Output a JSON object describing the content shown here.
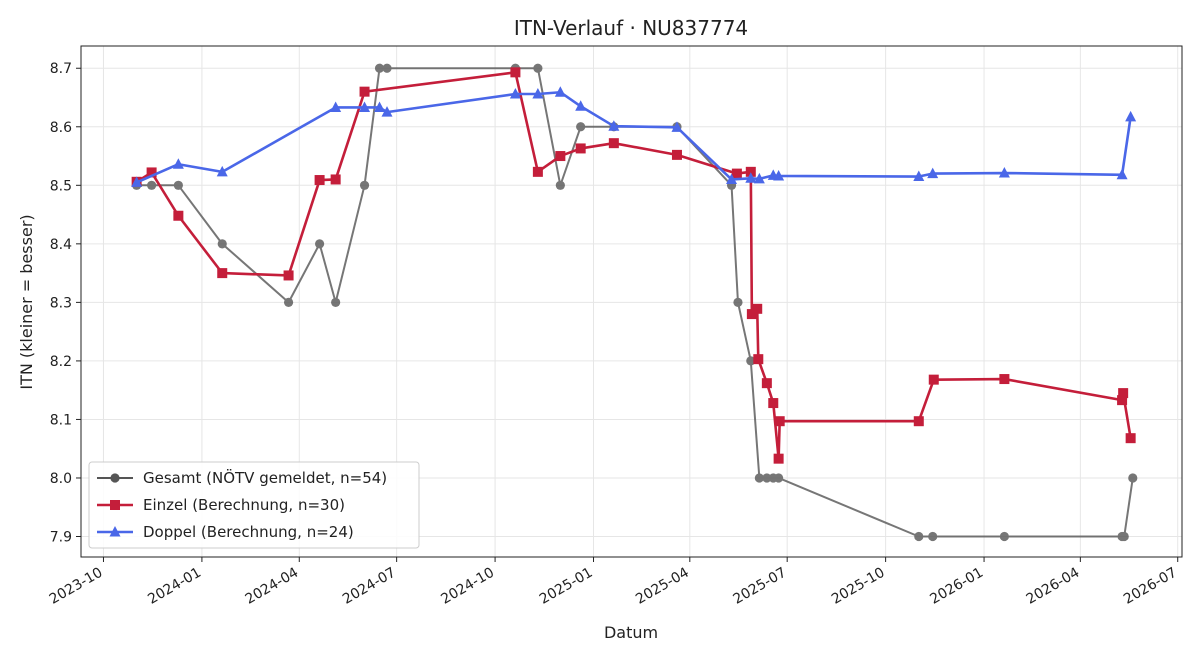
{
  "chart_data": {
    "type": "line",
    "title": "ITN-Verlauf · NU837774",
    "xlabel": "Datum",
    "ylabel": "ITN  (kleiner = besser)",
    "x_ticks": [
      "2023-10",
      "2024-01",
      "2024-04",
      "2024-07",
      "2024-10",
      "2025-01",
      "2025-04",
      "2025-07",
      "2025-10",
      "2026-01",
      "2026-04",
      "2026-07"
    ],
    "y_ticks": [
      "7.9",
      "8.0",
      "8.1",
      "8.2",
      "8.3",
      "8.4",
      "8.5",
      "8.6",
      "8.7"
    ],
    "xlim": [
      "2023-09-10",
      "2026-07-05"
    ],
    "ylim": [
      7.865,
      8.738
    ],
    "grid": true,
    "legend_position": "lower-left",
    "series": [
      {
        "name": "Gesamt (NÖTV gemeldet, n=54)",
        "color": "#555555",
        "marker": "circle",
        "points": [
          [
            "2023-11-01",
            8.5
          ],
          [
            "2023-11-15",
            8.5
          ],
          [
            "2023-12-10",
            8.5
          ],
          [
            "2024-01-20",
            8.4
          ],
          [
            "2024-03-22",
            8.3
          ],
          [
            "2024-04-20",
            8.4
          ],
          [
            "2024-05-05",
            8.3
          ],
          [
            "2024-06-01",
            8.5
          ],
          [
            "2024-06-15",
            8.7
          ],
          [
            "2024-06-22",
            8.7
          ],
          [
            "2024-10-20",
            8.7
          ],
          [
            "2024-11-10",
            8.7
          ],
          [
            "2024-12-01",
            8.5
          ],
          [
            "2024-12-20",
            8.6
          ],
          [
            "2025-01-20",
            8.6
          ],
          [
            "2025-03-20",
            8.6
          ],
          [
            "2025-05-10",
            8.5
          ],
          [
            "2025-05-16",
            8.3
          ],
          [
            "2025-05-28",
            8.2
          ],
          [
            "2025-06-05",
            8.0
          ],
          [
            "2025-06-12",
            8.0
          ],
          [
            "2025-06-18",
            8.0
          ],
          [
            "2025-06-23",
            8.0
          ],
          [
            "2025-11-01",
            7.9
          ],
          [
            "2025-11-14",
            7.9
          ],
          [
            "2026-01-20",
            7.9
          ],
          [
            "2026-05-10",
            7.9
          ],
          [
            "2026-05-12",
            7.9
          ],
          [
            "2026-05-20",
            8.0
          ]
        ]
      },
      {
        "name": "Einzel (Berechnung, n=30)",
        "color": "#c41e3a",
        "marker": "square",
        "points": [
          [
            "2023-11-01",
            8.506
          ],
          [
            "2023-11-15",
            8.522
          ],
          [
            "2023-12-10",
            8.448
          ],
          [
            "2024-01-20",
            8.35
          ],
          [
            "2024-03-22",
            8.346
          ],
          [
            "2024-04-20",
            8.509
          ],
          [
            "2024-05-05",
            8.51
          ],
          [
            "2024-06-01",
            8.66
          ],
          [
            "2024-10-20",
            8.693
          ],
          [
            "2024-11-10",
            8.523
          ],
          [
            "2024-12-01",
            8.55
          ],
          [
            "2024-12-20",
            8.563
          ],
          [
            "2025-01-20",
            8.572
          ],
          [
            "2025-03-20",
            8.552
          ],
          [
            "2025-05-15",
            8.52
          ],
          [
            "2025-05-28",
            8.523
          ],
          [
            "2025-05-29",
            8.28
          ],
          [
            "2025-06-03",
            8.289
          ],
          [
            "2025-06-04",
            8.203
          ],
          [
            "2025-06-12",
            8.162
          ],
          [
            "2025-06-18",
            8.128
          ],
          [
            "2025-06-23",
            8.033
          ],
          [
            "2025-06-24",
            8.097
          ],
          [
            "2025-11-01",
            8.097
          ],
          [
            "2025-11-15",
            8.168
          ],
          [
            "2026-01-20",
            8.169
          ],
          [
            "2026-05-10",
            8.133
          ],
          [
            "2026-05-11",
            8.145
          ],
          [
            "2026-05-18",
            8.068
          ]
        ]
      },
      {
        "name": "Doppel (Berechnung, n=24)",
        "color": "#4a67e8",
        "marker": "triangle",
        "points": [
          [
            "2023-11-01",
            8.505
          ],
          [
            "2023-12-10",
            8.536
          ],
          [
            "2024-01-20",
            8.523
          ],
          [
            "2024-05-05",
            8.633
          ],
          [
            "2024-06-01",
            8.633
          ],
          [
            "2024-06-15",
            8.633
          ],
          [
            "2024-06-22",
            8.625
          ],
          [
            "2024-10-20",
            8.656
          ],
          [
            "2024-11-10",
            8.656
          ],
          [
            "2024-12-01",
            8.659
          ],
          [
            "2024-12-20",
            8.635
          ],
          [
            "2025-01-20",
            8.601
          ],
          [
            "2025-03-20",
            8.599
          ],
          [
            "2025-05-10",
            8.51
          ],
          [
            "2025-05-28",
            8.512
          ],
          [
            "2025-06-05",
            8.511
          ],
          [
            "2025-06-18",
            8.517
          ],
          [
            "2025-06-23",
            8.516
          ],
          [
            "2025-11-01",
            8.515
          ],
          [
            "2025-11-14",
            8.52
          ],
          [
            "2026-01-20",
            8.521
          ],
          [
            "2026-05-10",
            8.518
          ],
          [
            "2026-05-18",
            8.617
          ]
        ]
      }
    ]
  }
}
